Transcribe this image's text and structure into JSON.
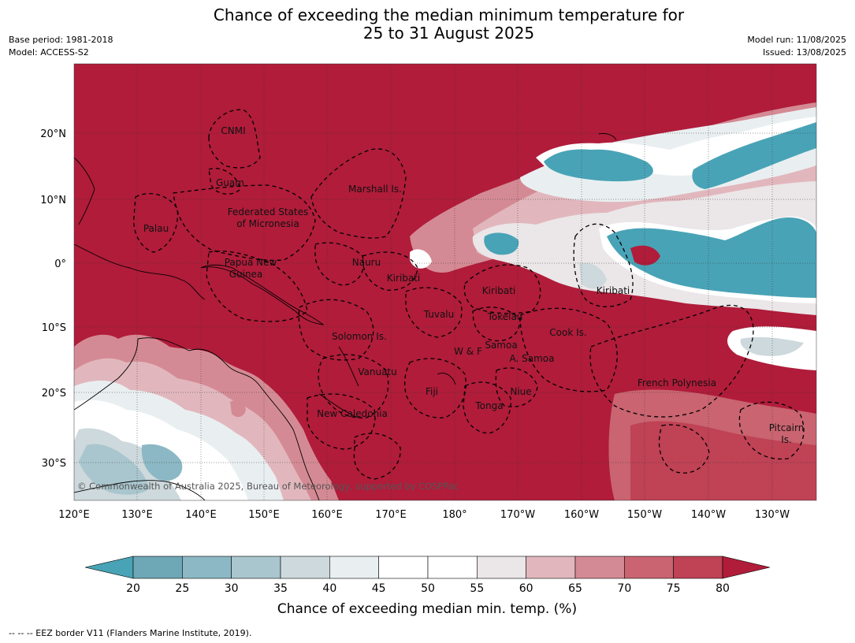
{
  "title_line1": "Chance of exceeding the median minimum temperature for",
  "title_line2": "25 to 31 August 2025",
  "base_period": "Base period: 1981-2018",
  "model": "Model: ACCESS-S2",
  "model_run": "Model run: 11/08/2025",
  "issued": "Issued: 13/08/2025",
  "copyright": "© Commonwealth of Australia 2025, Bureau of Meteorology, supported by COSPPac",
  "footnote": "--  --  -- EEZ border V11 (Flanders Marine Institute, 2019).",
  "lat_ticks": [
    "20°N",
    "10°N",
    "0°",
    "10°S",
    "20°S",
    "30°S"
  ],
  "lon_ticks": [
    "120°E",
    "130°E",
    "140°E",
    "150°E",
    "160°E",
    "170°E",
    "180°",
    "170°W",
    "160°W",
    "150°W",
    "140°W",
    "130°W"
  ],
  "places": [
    {
      "name": "CNMI"
    },
    {
      "name": "Guam"
    },
    {
      "name": "Marshall Is."
    },
    {
      "name": "Federated States"
    },
    {
      "name": "of Micronesia"
    },
    {
      "name": "Palau"
    },
    {
      "name": "Papua New"
    },
    {
      "name": "Guinea"
    },
    {
      "name": "Nauru"
    },
    {
      "name": "Kiribati"
    },
    {
      "name": "Kiribati"
    },
    {
      "name": "Kiribati"
    },
    {
      "name": "Tuvalu"
    },
    {
      "name": "Tokelau"
    },
    {
      "name": "Solomon Is."
    },
    {
      "name": "Samoa"
    },
    {
      "name": "W & F"
    },
    {
      "name": "A. Samoa"
    },
    {
      "name": "Cook Is."
    },
    {
      "name": "Vanuatu"
    },
    {
      "name": "Fiji"
    },
    {
      "name": "Niue"
    },
    {
      "name": "Tonga"
    },
    {
      "name": "French Polynesia"
    },
    {
      "name": "New Caledonia"
    },
    {
      "name": "Pitcairn"
    },
    {
      "name": "Is."
    }
  ],
  "colorbar": {
    "title": "Chance of exceeding median min. temp. (%)",
    "ticks": [
      "20",
      "25",
      "30",
      "35",
      "40",
      "45",
      "50",
      "55",
      "60",
      "65",
      "70",
      "75",
      "80"
    ],
    "colors": [
      "#49a3b6",
      "#6ea7b6",
      "#8bb8c4",
      "#a9c6ce",
      "#cdd9dc",
      "#e9eff1",
      "#ffffff",
      "#ffffff",
      "#ebe6e8",
      "#e1b7bd",
      "#d48a94",
      "#c96470",
      "#bf4255",
      "#b01c3a"
    ]
  },
  "colors": {
    "warm": "#b01c3a",
    "cool": "#49a3b6"
  }
}
